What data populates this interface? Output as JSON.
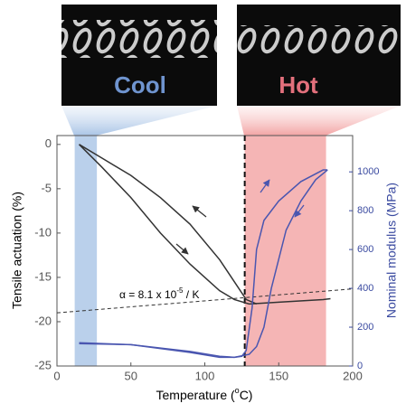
{
  "chart_data": {
    "type": "line",
    "photo_labels": [
      "Cool",
      "Hot"
    ],
    "xlabel": "Temperature (",
    "xlabel_sup": "o",
    "xlabel_end": "C)",
    "ylabel": "Tensile actuation (%)",
    "y2label": "Nominal modulus (MPa)",
    "annotation": "α = 8.1 x 10",
    "annotation_sup": "-5",
    "annotation_end": " / K",
    "xlim": [
      0,
      200
    ],
    "xticks": [
      0,
      50,
      100,
      150,
      200
    ],
    "ylim": [
      -25,
      1
    ],
    "yticks": [
      0,
      -5,
      -10,
      -15,
      -20,
      -25
    ],
    "y2lim": [
      0,
      1187
    ],
    "y2ticks": [
      0,
      200,
      400,
      600,
      800,
      1000
    ],
    "shaded_regions": [
      {
        "x": [
          12,
          27
        ],
        "color": "#a9c4e6"
      },
      {
        "x": [
          127,
          182
        ],
        "color": "#f2a3a3"
      }
    ],
    "vline": 127,
    "fit_line": {
      "x": [
        0,
        200
      ],
      "values": [
        -19,
        -16.3
      ]
    },
    "series": [
      {
        "color": "#333333",
        "x": [
          15,
          30,
          50,
          70,
          90,
          110,
          120,
          128,
          135
        ],
        "values": [
          0,
          -1.5,
          -3.5,
          -6,
          -9,
          -13,
          -15.5,
          -17.5,
          -18
        ]
      },
      {
        "color": "#333333",
        "x": [
          15,
          30,
          50,
          70,
          90,
          110,
          120,
          130,
          150,
          180,
          185
        ],
        "values": [
          0,
          -2.5,
          -6,
          -10,
          -13.5,
          -16.5,
          -17.5,
          -18,
          -17.8,
          -17.5,
          -17.4
        ]
      },
      {
        "color": "#4a56b0",
        "axis": "y2",
        "x": [
          15,
          50,
          90,
          110,
          120,
          125,
          128,
          132,
          135,
          140,
          150,
          165,
          180,
          183
        ],
        "values": [
          120,
          110,
          75,
          50,
          45,
          50,
          80,
          300,
          600,
          750,
          850,
          950,
          1010,
          1010
        ]
      },
      {
        "color": "#4a56b0",
        "axis": "y2",
        "x": [
          183,
          175,
          165,
          155,
          145,
          140,
          135,
          130,
          120,
          110,
          90,
          50,
          15
        ],
        "values": [
          1010,
          960,
          850,
          700,
          400,
          200,
          100,
          60,
          45,
          45,
          70,
          110,
          115
        ]
      }
    ]
  }
}
